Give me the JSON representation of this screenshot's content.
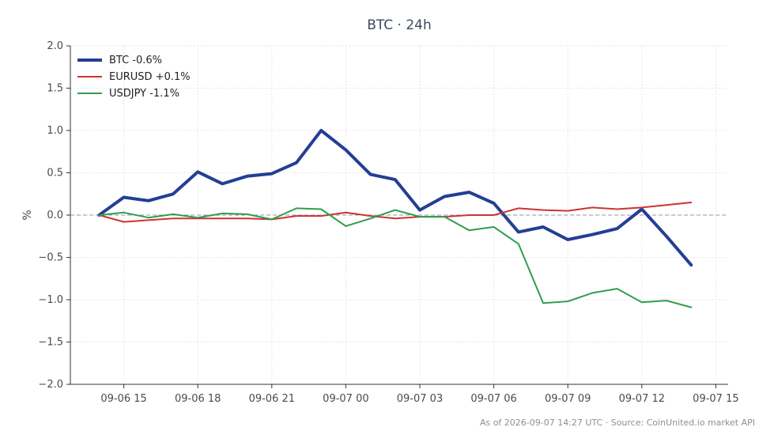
{
  "chart_data": {
    "type": "line",
    "title": "BTC · 24h",
    "xlabel": "",
    "ylabel": "%",
    "ylim": [
      -2.0,
      2.0
    ],
    "yticks": [
      -2.0,
      -1.5,
      -1.0,
      -0.5,
      0.0,
      0.5,
      1.0,
      1.5,
      2.0
    ],
    "xlim": [
      "2026-09-06 12:50",
      "2026-09-07 15:30"
    ],
    "xticks": [
      {
        "t": "2026-09-06 15:00",
        "label": "09-06 15"
      },
      {
        "t": "2026-09-06 18:00",
        "label": "09-06 18"
      },
      {
        "t": "2026-09-06 21:00",
        "label": "09-06 21"
      },
      {
        "t": "2026-09-07 00:00",
        "label": "09-07 00"
      },
      {
        "t": "2026-09-07 03:00",
        "label": "09-07 03"
      },
      {
        "t": "2026-09-07 06:00",
        "label": "09-07 06"
      },
      {
        "t": "2026-09-07 09:00",
        "label": "09-07 09"
      },
      {
        "t": "2026-09-07 12:00",
        "label": "09-07 12"
      },
      {
        "t": "2026-09-07 15:00",
        "label": "09-07 15"
      }
    ],
    "grid": true,
    "zero_line": true,
    "legend": "top-left",
    "x": [
      "2026-09-06 14:00",
      "2026-09-06 15:00",
      "2026-09-06 16:00",
      "2026-09-06 17:00",
      "2026-09-06 18:00",
      "2026-09-06 19:00",
      "2026-09-06 20:00",
      "2026-09-06 21:00",
      "2026-09-06 22:00",
      "2026-09-06 23:00",
      "2026-09-07 00:00",
      "2026-09-07 01:00",
      "2026-09-07 02:00",
      "2026-09-07 03:00",
      "2026-09-07 04:00",
      "2026-09-07 05:00",
      "2026-09-07 06:00",
      "2026-09-07 07:00",
      "2026-09-07 08:00",
      "2026-09-07 09:00",
      "2026-09-07 10:00",
      "2026-09-07 11:00",
      "2026-09-07 12:00",
      "2026-09-07 13:00",
      "2026-09-07 14:00"
    ],
    "series": [
      {
        "name": "BTC -0.6%",
        "color": "#233f94",
        "width": 4,
        "values": [
          0.0,
          0.21,
          0.17,
          0.25,
          0.51,
          0.37,
          0.46,
          0.49,
          0.62,
          1.0,
          0.77,
          0.48,
          0.42,
          0.06,
          0.22,
          0.27,
          0.14,
          -0.2,
          -0.14,
          -0.29,
          -0.23,
          -0.16,
          0.07,
          -0.25,
          -0.59
        ]
      },
      {
        "name": "EURUSD +0.1%",
        "color": "#cd3333",
        "width": 2,
        "values": [
          0.0,
          -0.08,
          -0.06,
          -0.04,
          -0.04,
          -0.04,
          -0.04,
          -0.05,
          -0.01,
          -0.01,
          0.03,
          -0.01,
          -0.04,
          -0.02,
          -0.02,
          0.0,
          0.0,
          0.08,
          0.06,
          0.05,
          0.09,
          0.07,
          0.09,
          0.12,
          0.15
        ]
      },
      {
        "name": "USDJPY -1.1%",
        "color": "#2e9e4f",
        "width": 2,
        "values": [
          0.0,
          0.03,
          -0.03,
          0.01,
          -0.03,
          0.02,
          0.01,
          -0.05,
          0.08,
          0.07,
          -0.13,
          -0.04,
          0.06,
          -0.02,
          -0.02,
          -0.18,
          -0.14,
          -0.34,
          -1.04,
          -1.02,
          -0.92,
          -0.87,
          -1.03,
          -1.01,
          -1.09
        ]
      }
    ]
  },
  "footer": {
    "text": "As of 2026-09-07 14:27 UTC · Source: CoinUnited.io market API"
  }
}
